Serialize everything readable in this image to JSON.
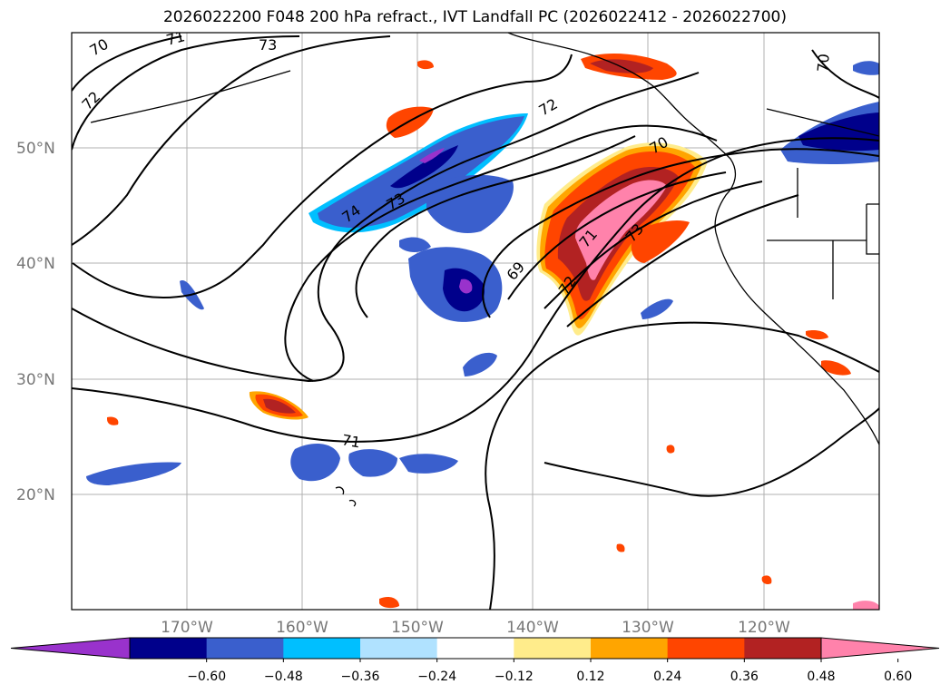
{
  "title": "2026022200 F048 200 hPa refract., IVT Landfall PC (2026022412 - 2026022700)",
  "lat_labels": [
    "50°N",
    "40°N",
    "30°N",
    "20°N"
  ],
  "lon_labels": [
    "170°W",
    "160°W",
    "150°W",
    "140°W",
    "130°W",
    "120°W"
  ],
  "colorbar": {
    "ticks": [
      "−0.60",
      "−0.48",
      "−0.36",
      "−0.24",
      "−0.12",
      "0.12",
      "0.24",
      "0.36",
      "0.48",
      "0.60"
    ],
    "colors": [
      "#9932cc",
      "#00008b",
      "#3a5fcd",
      "#00bfff",
      "#b0e2ff",
      "#ffffff",
      "#ffec8b",
      "#ffa500",
      "#ff4500",
      "#b22222",
      "#ff82ab"
    ]
  },
  "contour_labels": [
    "70",
    "71",
    "73",
    "72",
    "73",
    "74",
    "72",
    "70",
    "69",
    "71",
    "72",
    "73",
    "71",
    "70"
  ]
}
